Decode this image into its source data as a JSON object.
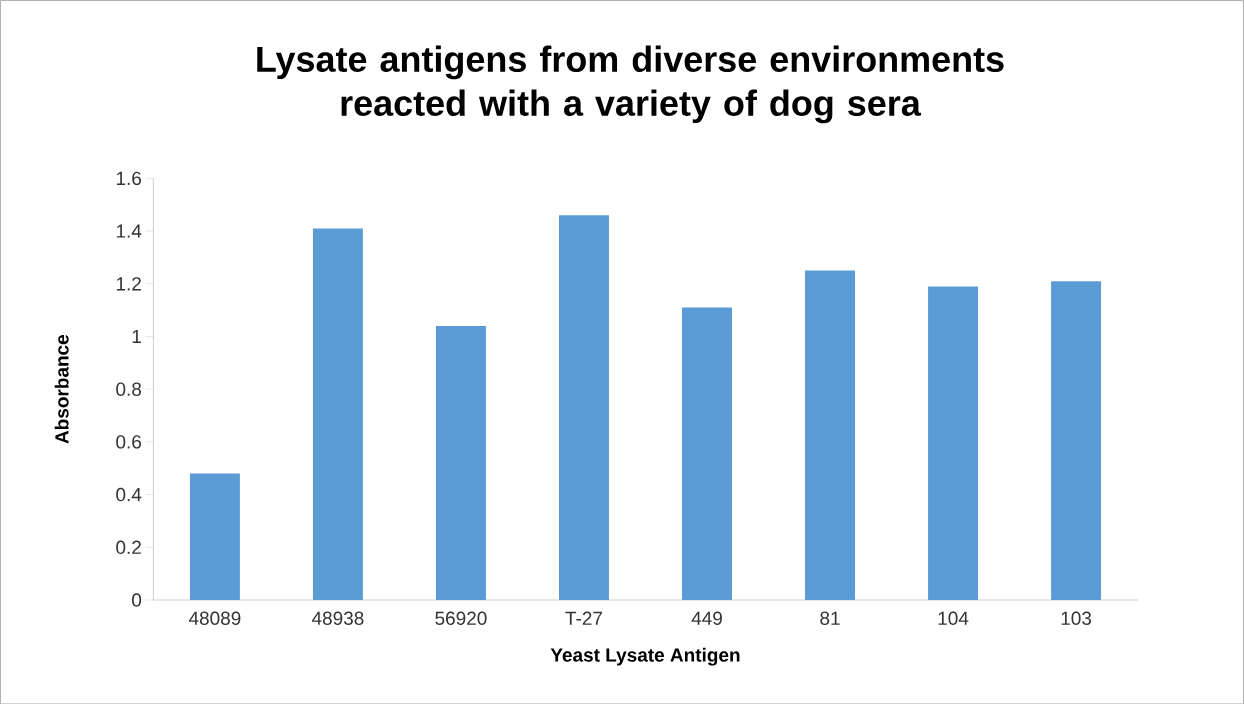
{
  "chart_data": {
    "type": "bar",
    "title": "Lysate antigens from diverse environments reacted with a variety of dog sera",
    "xlabel": "Yeast Lysate Antigen",
    "ylabel": "Absorbance",
    "categories": [
      "48089",
      "48938",
      "56920",
      "T-27",
      "449",
      "81",
      "104",
      "103"
    ],
    "values": [
      0.48,
      1.41,
      1.04,
      1.46,
      1.11,
      1.25,
      1.19,
      1.21
    ],
    "color": "#5b9bd5",
    "ylim": [
      0,
      1.6
    ],
    "yticks": [
      0,
      0.2,
      0.4,
      0.6,
      0.8,
      1,
      1.2,
      1.4,
      1.6
    ],
    "grid": false
  }
}
